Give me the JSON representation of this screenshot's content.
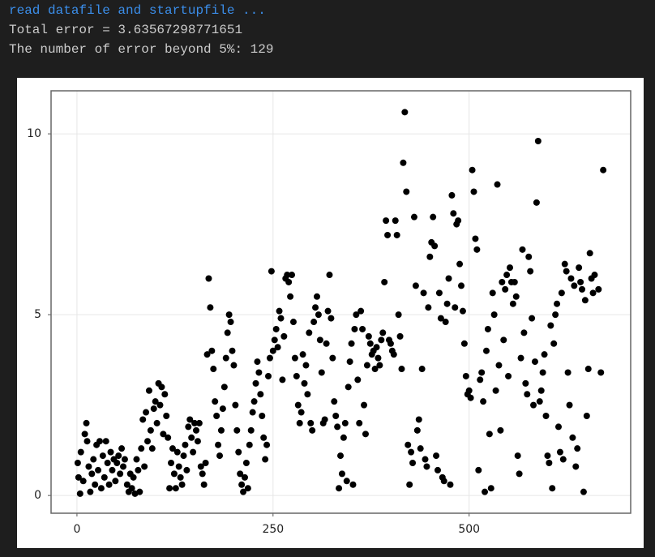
{
  "console": {
    "lines": [
      "read datafile and startupfile ...",
      "Total error = 3.63567298771651",
      "The number of error beyond 5%: 129"
    ]
  },
  "chart_data": {
    "type": "scatter",
    "color": "#000000",
    "grid": true,
    "xlim": [
      -33,
      706
    ],
    "ylim": [
      -0.49,
      11.19
    ],
    "xticks": [
      0,
      250,
      500
    ],
    "yticks": [
      0,
      5,
      10
    ],
    "x": [
      1,
      2,
      4,
      5,
      8,
      10,
      12,
      13,
      15,
      17,
      19,
      21,
      23,
      25,
      27,
      29,
      31,
      33,
      35,
      37,
      39,
      41,
      43,
      45,
      47,
      49,
      51,
      53,
      55,
      57,
      59,
      61,
      64,
      66,
      68,
      70,
      72,
      74,
      76,
      78,
      80,
      82,
      84,
      86,
      88,
      90,
      92,
      94,
      96,
      98,
      100,
      102,
      104,
      106,
      108,
      110,
      112,
      114,
      116,
      118,
      120,
      122,
      124,
      126,
      128,
      130,
      132,
      134,
      136,
      138,
      140,
      142,
      144,
      146,
      148,
      150,
      152,
      154,
      156,
      158,
      160,
      162,
      164,
      166,
      168,
      170,
      172,
      174,
      176,
      178,
      180,
      182,
      184,
      186,
      188,
      190,
      192,
      194,
      196,
      198,
      200,
      202,
      204,
      206,
      208,
      210,
      212,
      214,
      216,
      218,
      220,
      222,
      224,
      226,
      228,
      230,
      232,
      234,
      236,
      238,
      240,
      242,
      244,
      246,
      248,
      250,
      252,
      254,
      256,
      258,
      260,
      262,
      264,
      266,
      268,
      270,
      272,
      274,
      276,
      278,
      280,
      282,
      284,
      286,
      288,
      290,
      292,
      294,
      296,
      298,
      300,
      302,
      304,
      306,
      308,
      310,
      312,
      314,
      316,
      318,
      320,
      322,
      324,
      326,
      328,
      330,
      332,
      334,
      336,
      338,
      340,
      342,
      344,
      346,
      348,
      350,
      352,
      354,
      356,
      358,
      360,
      362,
      364,
      366,
      368,
      370,
      372,
      374,
      376,
      378,
      380,
      382,
      384,
      386,
      388,
      390,
      392,
      394,
      396,
      398,
      400,
      402,
      404,
      406,
      408,
      410,
      412,
      414,
      416,
      418,
      420,
      422,
      424,
      426,
      428,
      430,
      432,
      434,
      436,
      438,
      440,
      442,
      444,
      446,
      448,
      450,
      452,
      454,
      456,
      458,
      460,
      462,
      464,
      466,
      468,
      470,
      472,
      474,
      476,
      478,
      480,
      482,
      484,
      486,
      488,
      490,
      492,
      494,
      496,
      498,
      500,
      502,
      504,
      506,
      508,
      510,
      512,
      514,
      516,
      518,
      520,
      522,
      524,
      526,
      528,
      530,
      532,
      534,
      536,
      538,
      540,
      542,
      544,
      546,
      548,
      550,
      552,
      554,
      556,
      558,
      560,
      562,
      564,
      566,
      568,
      570,
      572,
      574,
      576,
      578,
      580,
      582,
      584,
      586,
      588,
      590,
      592,
      594,
      596,
      598,
      600,
      602,
      604,
      606,
      608,
      610,
      612,
      614,
      616,
      618,
      620,
      622,
      624,
      626,
      628,
      630,
      632,
      634,
      636,
      638,
      640,
      642,
      644,
      646,
      648,
      650,
      652,
      654,
      656,
      658,
      660,
      665,
      668,
      671
    ],
    "values": [
      0.9,
      0.5,
      0.05,
      1.2,
      0.4,
      1.7,
      2.0,
      1.5,
      0.8,
      0.1,
      0.6,
      1.0,
      0.3,
      1.4,
      0.7,
      1.5,
      0.2,
      1.1,
      0.5,
      1.5,
      0.9,
      0.3,
      1.2,
      0.7,
      1.0,
      0.4,
      0.9,
      1.1,
      0.6,
      1.3,
      0.8,
      1.0,
      0.3,
      0.1,
      0.6,
      0.2,
      0.5,
      0.05,
      1.0,
      0.7,
      0.1,
      1.3,
      2.1,
      0.8,
      2.3,
      1.5,
      2.9,
      1.8,
      1.3,
      2.4,
      2.6,
      2.0,
      3.1,
      2.5,
      3.0,
      1.7,
      2.8,
      2.2,
      1.6,
      0.2,
      0.9,
      1.3,
      0.6,
      0.2,
      1.2,
      0.8,
      0.5,
      0.3,
      1.1,
      1.4,
      0.7,
      1.9,
      2.1,
      1.6,
      1.2,
      2.0,
      1.8,
      1.5,
      2.0,
      0.8,
      0.6,
      0.3,
      0.9,
      3.9,
      6.0,
      5.2,
      4.0,
      3.5,
      2.6,
      2.2,
      1.4,
      1.1,
      1.8,
      2.4,
      3.0,
      3.8,
      4.5,
      5.0,
      4.8,
      4.0,
      3.6,
      2.5,
      1.8,
      1.2,
      0.6,
      0.3,
      0.1,
      0.5,
      0.9,
      0.2,
      1.4,
      1.8,
      2.3,
      2.6,
      3.1,
      3.7,
      3.4,
      2.8,
      2.2,
      1.6,
      1.0,
      1.4,
      3.3,
      3.8,
      6.2,
      4.0,
      4.3,
      4.6,
      4.1,
      5.1,
      4.9,
      3.2,
      4.4,
      6.0,
      6.1,
      5.9,
      5.5,
      6.1,
      4.8,
      3.8,
      3.3,
      2.5,
      2.0,
      2.3,
      3.9,
      3.1,
      3.6,
      2.8,
      4.5,
      2.0,
      1.8,
      4.8,
      5.2,
      5.5,
      5.0,
      4.3,
      3.4,
      2.0,
      2.1,
      4.2,
      5.1,
      6.1,
      4.9,
      3.8,
      2.6,
      2.2,
      1.9,
      0.2,
      1.1,
      0.6,
      1.6,
      2.0,
      0.4,
      3.0,
      3.7,
      4.2,
      0.3,
      4.6,
      5.0,
      3.2,
      2.0,
      5.1,
      4.6,
      2.5,
      1.7,
      3.6,
      4.4,
      4.2,
      3.9,
      4.0,
      3.5,
      4.1,
      3.8,
      3.6,
      4.3,
      4.5,
      5.9,
      7.6,
      7.2,
      4.3,
      4.2,
      4.0,
      3.9,
      7.6,
      7.2,
      5.0,
      4.4,
      3.5,
      9.2,
      10.6,
      8.4,
      1.4,
      0.3,
      1.2,
      0.9,
      7.7,
      5.8,
      1.8,
      2.1,
      1.3,
      3.5,
      5.6,
      1.0,
      0.8,
      5.2,
      6.6,
      7.0,
      7.7,
      6.9,
      1.1,
      0.7,
      5.6,
      4.9,
      0.5,
      0.4,
      4.8,
      5.3,
      6.0,
      0.3,
      8.3,
      7.8,
      5.2,
      7.5,
      7.6,
      6.4,
      5.8,
      5.1,
      4.2,
      3.3,
      2.8,
      2.9,
      2.7,
      9.0,
      8.4,
      7.1,
      6.8,
      0.7,
      3.2,
      3.4,
      2.6,
      0.1,
      4.0,
      4.6,
      1.7,
      0.2,
      5.6,
      5.0,
      2.9,
      8.6,
      3.6,
      1.8,
      5.9,
      4.3,
      5.7,
      6.1,
      3.3,
      6.3,
      5.9,
      5.3,
      5.9,
      5.5,
      1.1,
      0.6,
      3.8,
      6.8,
      4.5,
      3.1,
      2.8,
      6.6,
      6.2,
      4.9,
      2.5,
      3.7,
      8.1,
      9.8,
      2.6,
      2.9,
      3.4,
      3.9,
      2.2,
      1.1,
      0.9,
      4.7,
      0.2,
      4.2,
      5.0,
      5.3,
      1.9,
      1.2,
      5.6,
      1.0,
      6.4,
      6.2,
      3.4,
      2.5,
      6.0,
      1.6,
      5.8,
      0.8,
      1.3,
      6.3,
      5.9,
      5.7,
      0.1,
      5.4,
      2.2,
      3.5,
      6.7,
      6.0,
      5.6,
      6.1,
      5.7,
      3.4,
      9.0
    ]
  }
}
